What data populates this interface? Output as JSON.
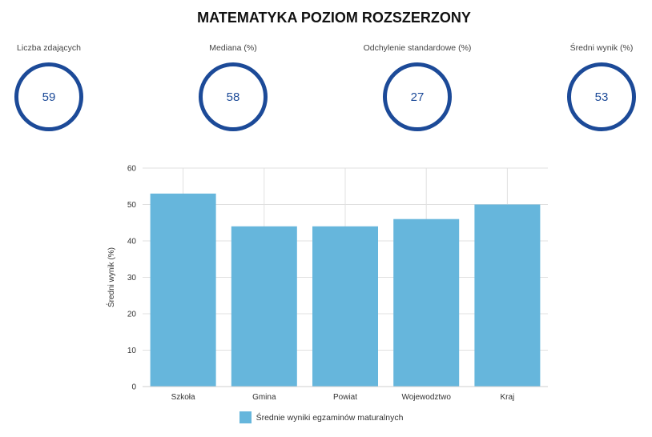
{
  "title": "MATEMATYKA POZIOM ROZSZERZONY",
  "stats": [
    {
      "label": "Liczba zdających",
      "value": "59"
    },
    {
      "label": "Mediana (%)",
      "value": "58"
    },
    {
      "label": "Odchylenie standardowe (%)",
      "value": "27"
    },
    {
      "label": "Średni wynik (%)",
      "value": "53"
    }
  ],
  "colors": {
    "circle": "#1c4a98",
    "bar": "#66b6dc",
    "grid": "#e0e0e0"
  },
  "chart_data": {
    "type": "bar",
    "title": "",
    "xlabel": "",
    "ylabel": "Średni wynik (%)",
    "categories": [
      "Szkoła",
      "Gmina",
      "Powiat",
      "Wojewodztwo",
      "Kraj"
    ],
    "series": [
      {
        "name": "Średnie wyniki egzaminów maturalnych",
        "values": [
          53,
          44,
          44,
          46,
          50
        ]
      }
    ],
    "ylim": [
      0,
      60
    ],
    "yticks": [
      0,
      10,
      20,
      30,
      40,
      50,
      60
    ],
    "grid": true,
    "legend": "bottom"
  }
}
